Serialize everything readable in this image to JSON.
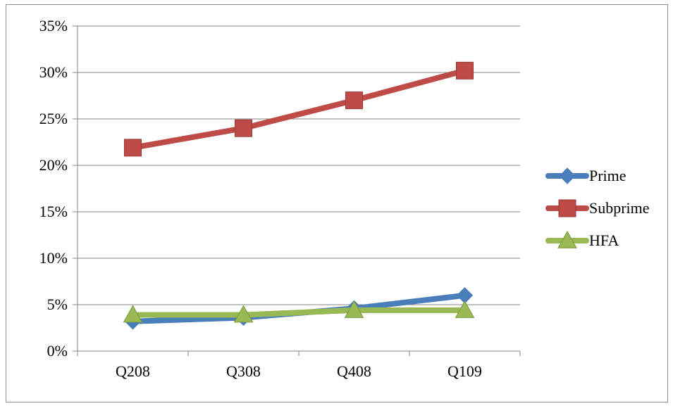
{
  "chart_data": {
    "type": "line",
    "title": "",
    "xlabel": "",
    "ylabel": "",
    "categories": [
      "Q208",
      "Q308",
      "Q408",
      "Q109"
    ],
    "ylim": [
      0,
      0.35
    ],
    "y_ticks": [
      0,
      0.05,
      0.1,
      0.15,
      0.2,
      0.25,
      0.3,
      0.35
    ],
    "y_tick_labels": [
      "0%",
      "5%",
      "10%",
      "15%",
      "20%",
      "25%",
      "30%",
      "35%"
    ],
    "grid": "horizontal",
    "legend_position": "right",
    "series": [
      {
        "name": "Prime",
        "values": [
          0.032,
          0.036,
          0.046,
          0.06
        ],
        "color": "#4a7ebb",
        "marker": "diamond"
      },
      {
        "name": "Subprime",
        "values": [
          0.219,
          0.24,
          0.27,
          0.302
        ],
        "color": "#be4b48",
        "marker": "square"
      },
      {
        "name": "HFA",
        "values": [
          0.039,
          0.039,
          0.044,
          0.044
        ],
        "color": "#98b954",
        "marker": "triangle"
      }
    ]
  }
}
